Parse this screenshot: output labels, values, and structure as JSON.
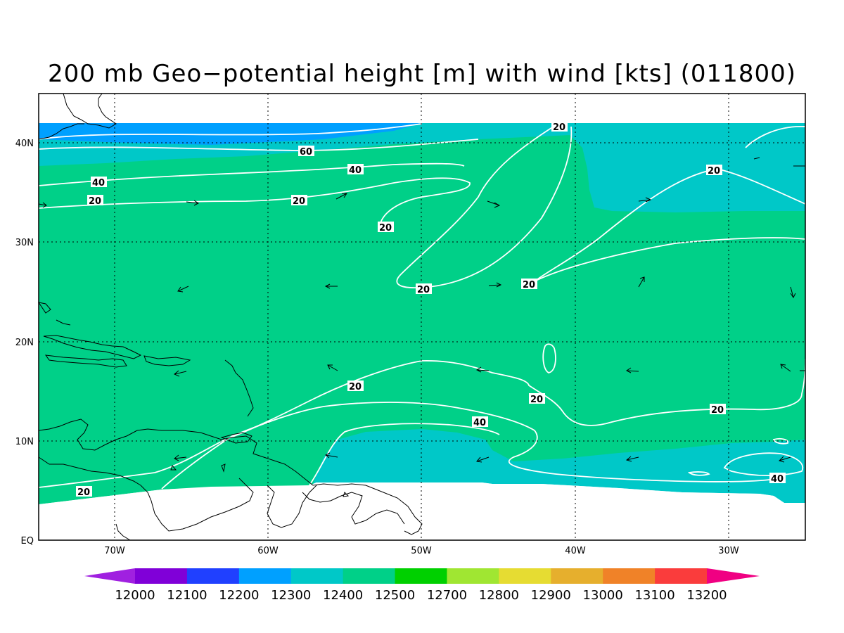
{
  "title": "200 mb Geo−potential height [m] with wind [kts] (011800)",
  "lat_ticks": [
    "40N",
    "30N",
    "20N",
    "10N",
    "EQ"
  ],
  "lon_ticks": [
    "70W",
    "60W",
    "50W",
    "40W",
    "30W"
  ],
  "colorbar": {
    "levels": [
      "12000",
      "12100",
      "12200",
      "12300",
      "12400",
      "12500",
      "12700",
      "12800",
      "12900",
      "13000",
      "13100",
      "13200"
    ],
    "colors": [
      "#a020e0",
      "#8000d8",
      "#2040ff",
      "#00a0ff",
      "#00c8c8",
      "#00d088",
      "#00d000",
      "#a0e632",
      "#e6dc32",
      "#e6af2d",
      "#f08228",
      "#fa3c3c",
      "#f00082"
    ]
  },
  "contour_labels": [
    "20",
    "60",
    "40",
    "40",
    "20",
    "20",
    "20",
    "20",
    "20",
    "20",
    "20",
    "20",
    "20",
    "40",
    "20",
    "40",
    "20"
  ],
  "field_colors": {
    "blue": "#00a0ff",
    "cyan": "#00c8c8",
    "green": "#00d088"
  }
}
